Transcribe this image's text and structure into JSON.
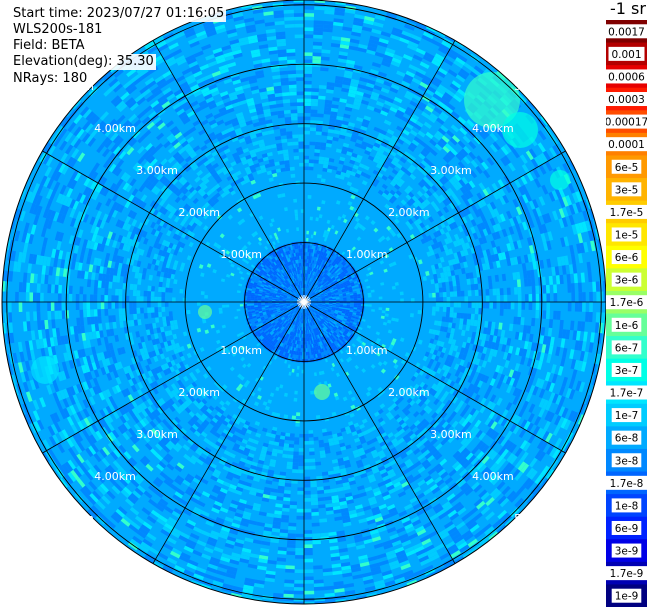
{
  "header": {
    "start_time": "Start time: 2023/07/27 01:16:05",
    "device": "WLS200s-181",
    "field": "Field: BETA",
    "elevation": "Elevation(deg): 35.30",
    "nrays": "NRays: 180"
  },
  "colorbar_unit": "-1 sr",
  "chart_data": {
    "type": "heatmap",
    "projection": "polar",
    "range_rings": [
      "1.00km",
      "2.00km",
      "3.00km",
      "4.00km",
      "5.00km"
    ],
    "range_ring_values_km": [
      1,
      2,
      3,
      4,
      5
    ],
    "max_range_km": 5.08,
    "spokes_deg": [
      0,
      30,
      60,
      90,
      120,
      150,
      180,
      210,
      240,
      270,
      300,
      330
    ],
    "colorbar": {
      "ticks": [
        "0.0017",
        "0.001",
        "0.0006",
        "0.0003",
        "0.00017",
        "0.0001",
        "6e-5",
        "3e-5",
        "1.7e-5",
        "1e-5",
        "6e-6",
        "3e-6",
        "1.7e-6",
        "1e-6",
        "6e-7",
        "3e-7",
        "1.7e-7",
        "1e-7",
        "6e-8",
        "3e-8",
        "1.7e-8",
        "1e-8",
        "6e-9",
        "3e-9",
        "1.7e-9",
        "1e-9"
      ],
      "colors": [
        "#800000",
        "#b30000",
        "#e60000",
        "#ff1a00",
        "#ff4d00",
        "#ff8000",
        "#ff9900",
        "#ffb300",
        "#ffcc00",
        "#ffe600",
        "#ffff00",
        "#ccff33",
        "#99ff66",
        "#66ff99",
        "#33ffcc",
        "#00ffe6",
        "#00e6ff",
        "#00ccff",
        "#00aaff",
        "#0088ff",
        "#0066ff",
        "#0044ff",
        "#0022ff",
        "#0000e6",
        "#0000b3",
        "#000080"
      ]
    },
    "dominant_value": "1e-7 to 3e-8",
    "inner_zone_value": "1.7e-8"
  }
}
